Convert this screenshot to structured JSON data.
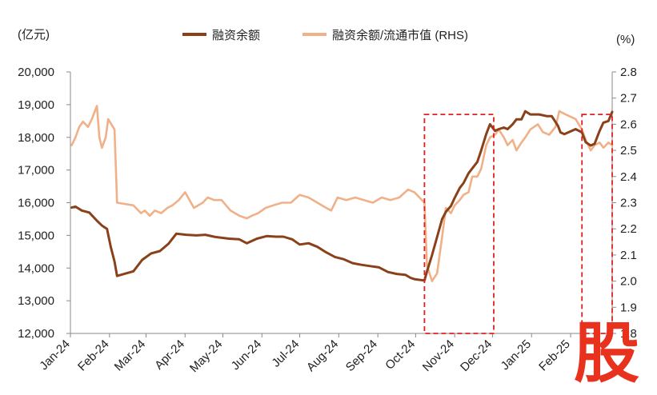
{
  "chart_data": {
    "type": "line",
    "left_unit": "(亿元)",
    "right_unit": "(%)",
    "x_tick_labels": [
      "Jan-24",
      "Feb-24",
      "Mar-24",
      "Apr-24",
      "May-24",
      "Jun-24",
      "Jul-24",
      "Aug-24",
      "Sep-24",
      "Oct-24",
      "Nov-24",
      "Dec-24",
      "Jan-25",
      "Feb-25"
    ],
    "y_left": {
      "min": 12000,
      "max": 20000,
      "ticks": [
        "12,000",
        "13,000",
        "14,000",
        "15,000",
        "16,000",
        "17,000",
        "18,000",
        "19,000",
        "20,000"
      ]
    },
    "y_right": {
      "min": 1.8,
      "max": 2.8,
      "ticks": [
        "1.8",
        "1.9",
        "2.0",
        "2.1",
        "2.2",
        "2.3",
        "2.4",
        "2.5",
        "2.6",
        "2.7",
        "2.8"
      ]
    },
    "series": [
      {
        "name": "融资余额",
        "axis": "left",
        "color": "#8a4119",
        "points": [
          [
            "2024-01-02",
            15850
          ],
          [
            "2024-01-05",
            15880
          ],
          [
            "2024-01-10",
            15760
          ],
          [
            "2024-01-16",
            15700
          ],
          [
            "2024-01-22",
            15450
          ],
          [
            "2024-01-26",
            15300
          ],
          [
            "2024-01-30",
            15200
          ],
          [
            "2024-02-02",
            14650
          ],
          [
            "2024-02-05",
            14200
          ],
          [
            "2024-02-07",
            13760
          ],
          [
            "2024-02-20",
            13900
          ],
          [
            "2024-02-27",
            14250
          ],
          [
            "2024-03-05",
            14450
          ],
          [
            "2024-03-12",
            14520
          ],
          [
            "2024-03-19",
            14750
          ],
          [
            "2024-03-25",
            15050
          ],
          [
            "2024-04-02",
            15020
          ],
          [
            "2024-04-10",
            15000
          ],
          [
            "2024-04-17",
            15020
          ],
          [
            "2024-04-25",
            14950
          ],
          [
            "2024-05-06",
            14900
          ],
          [
            "2024-05-14",
            14880
          ],
          [
            "2024-05-20",
            14760
          ],
          [
            "2024-05-28",
            14900
          ],
          [
            "2024-06-05",
            14980
          ],
          [
            "2024-06-12",
            14960
          ],
          [
            "2024-06-18",
            14960
          ],
          [
            "2024-06-25",
            14880
          ],
          [
            "2024-07-01",
            14720
          ],
          [
            "2024-07-08",
            14760
          ],
          [
            "2024-07-15",
            14650
          ],
          [
            "2024-07-22",
            14480
          ],
          [
            "2024-07-29",
            14340
          ],
          [
            "2024-08-05",
            14270
          ],
          [
            "2024-08-12",
            14150
          ],
          [
            "2024-08-19",
            14100
          ],
          [
            "2024-08-26",
            14060
          ],
          [
            "2024-09-02",
            14020
          ],
          [
            "2024-09-09",
            13880
          ],
          [
            "2024-09-16",
            13820
          ],
          [
            "2024-09-23",
            13790
          ],
          [
            "2024-09-27",
            13700
          ],
          [
            "2024-09-30",
            13660
          ],
          [
            "2024-10-08",
            13620
          ],
          [
            "2024-10-10",
            13900
          ],
          [
            "2024-10-14",
            14400
          ],
          [
            "2024-10-18",
            14950
          ],
          [
            "2024-10-22",
            15500
          ],
          [
            "2024-10-25",
            15720
          ],
          [
            "2024-10-29",
            15900
          ],
          [
            "2024-11-01",
            16150
          ],
          [
            "2024-11-05",
            16450
          ],
          [
            "2024-11-08",
            16600
          ],
          [
            "2024-11-12",
            16900
          ],
          [
            "2024-11-15",
            17050
          ],
          [
            "2024-11-19",
            17250
          ],
          [
            "2024-11-22",
            17600
          ],
          [
            "2024-11-26",
            18100
          ],
          [
            "2024-11-29",
            18400
          ],
          [
            "2024-12-03",
            18200
          ],
          [
            "2024-12-06",
            18250
          ],
          [
            "2024-12-10",
            18300
          ],
          [
            "2024-12-13",
            18250
          ],
          [
            "2024-12-17",
            18400
          ],
          [
            "2024-12-20",
            18550
          ],
          [
            "2024-12-24",
            18550
          ],
          [
            "2024-12-27",
            18800
          ],
          [
            "2024-12-31",
            18700
          ],
          [
            "2025-01-07",
            18700
          ],
          [
            "2025-01-13",
            18650
          ],
          [
            "2025-01-17",
            18650
          ],
          [
            "2025-01-22",
            18350
          ],
          [
            "2025-01-24",
            18150
          ],
          [
            "2025-01-27",
            18100
          ],
          [
            "2025-02-05",
            18250
          ],
          [
            "2025-02-10",
            18150
          ],
          [
            "2025-02-13",
            17850
          ],
          [
            "2025-02-17",
            17750
          ],
          [
            "2025-02-20",
            17800
          ],
          [
            "2025-02-24",
            18200
          ],
          [
            "2025-02-27",
            18450
          ],
          [
            "2025-03-03",
            18500
          ],
          [
            "2025-03-06",
            18780
          ]
        ]
      },
      {
        "name": "融资余额/流通市值 (RHS)",
        "axis": "right",
        "color": "#f0b088",
        "points": [
          [
            "2024-01-02",
            2.52
          ],
          [
            "2024-01-05",
            2.55
          ],
          [
            "2024-01-08",
            2.59
          ],
          [
            "2024-01-11",
            2.61
          ],
          [
            "2024-01-15",
            2.59
          ],
          [
            "2024-01-18",
            2.62
          ],
          [
            "2024-01-22",
            2.67
          ],
          [
            "2024-01-24",
            2.55
          ],
          [
            "2024-01-26",
            2.51
          ],
          [
            "2024-01-29",
            2.55
          ],
          [
            "2024-01-31",
            2.62
          ],
          [
            "2024-02-05",
            2.58
          ],
          [
            "2024-02-07",
            2.3
          ],
          [
            "2024-02-20",
            2.29
          ],
          [
            "2024-02-26",
            2.26
          ],
          [
            "2024-02-29",
            2.27
          ],
          [
            "2024-03-04",
            2.25
          ],
          [
            "2024-03-08",
            2.27
          ],
          [
            "2024-03-13",
            2.26
          ],
          [
            "2024-03-18",
            2.28
          ],
          [
            "2024-03-22",
            2.29
          ],
          [
            "2024-03-27",
            2.31
          ],
          [
            "2024-04-01",
            2.34
          ],
          [
            "2024-04-08",
            2.28
          ],
          [
            "2024-04-15",
            2.3
          ],
          [
            "2024-04-19",
            2.32
          ],
          [
            "2024-04-24",
            2.31
          ],
          [
            "2024-04-30",
            2.31
          ],
          [
            "2024-05-07",
            2.27
          ],
          [
            "2024-05-14",
            2.25
          ],
          [
            "2024-05-20",
            2.24
          ],
          [
            "2024-05-24",
            2.25
          ],
          [
            "2024-05-29",
            2.26
          ],
          [
            "2024-06-04",
            2.28
          ],
          [
            "2024-06-10",
            2.29
          ],
          [
            "2024-06-17",
            2.3
          ],
          [
            "2024-06-24",
            2.3
          ],
          [
            "2024-07-01",
            2.33
          ],
          [
            "2024-07-08",
            2.32
          ],
          [
            "2024-07-15",
            2.3
          ],
          [
            "2024-07-22",
            2.28
          ],
          [
            "2024-07-26",
            2.27
          ],
          [
            "2024-07-31",
            2.32
          ],
          [
            "2024-08-07",
            2.31
          ],
          [
            "2024-08-14",
            2.32
          ],
          [
            "2024-08-21",
            2.31
          ],
          [
            "2024-08-28",
            2.3
          ],
          [
            "2024-09-04",
            2.32
          ],
          [
            "2024-09-11",
            2.31
          ],
          [
            "2024-09-18",
            2.32
          ],
          [
            "2024-09-25",
            2.35
          ],
          [
            "2024-09-30",
            2.34
          ],
          [
            "2024-10-08",
            2.3
          ],
          [
            "2024-10-10",
            2.06
          ],
          [
            "2024-10-14",
            2.0
          ],
          [
            "2024-10-18",
            2.03
          ],
          [
            "2024-10-22",
            2.17
          ],
          [
            "2024-10-25",
            2.28
          ],
          [
            "2024-10-29",
            2.26
          ],
          [
            "2024-11-01",
            2.29
          ],
          [
            "2024-11-05",
            2.31
          ],
          [
            "2024-11-08",
            2.33
          ],
          [
            "2024-11-12",
            2.34
          ],
          [
            "2024-11-15",
            2.4
          ],
          [
            "2024-11-19",
            2.4
          ],
          [
            "2024-11-22",
            2.43
          ],
          [
            "2024-11-26",
            2.52
          ],
          [
            "2024-11-29",
            2.55
          ],
          [
            "2024-12-03",
            2.56
          ],
          [
            "2024-12-06",
            2.58
          ],
          [
            "2024-12-10",
            2.55
          ],
          [
            "2024-12-13",
            2.52
          ],
          [
            "2024-12-17",
            2.54
          ],
          [
            "2024-12-20",
            2.5
          ],
          [
            "2024-12-24",
            2.53
          ],
          [
            "2024-12-27",
            2.55
          ],
          [
            "2024-12-31",
            2.58
          ],
          [
            "2025-01-06",
            2.6
          ],
          [
            "2025-01-10",
            2.57
          ],
          [
            "2025-01-15",
            2.56
          ],
          [
            "2025-01-20",
            2.59
          ],
          [
            "2025-01-23",
            2.65
          ],
          [
            "2025-01-27",
            2.64
          ],
          [
            "2025-02-05",
            2.62
          ],
          [
            "2025-02-10",
            2.58
          ],
          [
            "2025-02-13",
            2.54
          ],
          [
            "2025-02-17",
            2.5
          ],
          [
            "2025-02-20",
            2.52
          ],
          [
            "2025-02-24",
            2.53
          ],
          [
            "2025-02-27",
            2.51
          ],
          [
            "2025-03-03",
            2.53
          ],
          [
            "2025-03-06",
            2.52
          ]
        ]
      }
    ],
    "annotations": [
      {
        "type": "dashed-box",
        "color": "#e02020",
        "x_range": [
          "2024-10-08",
          "2024-12-02"
        ],
        "y_range": [
          12000,
          18700
        ]
      },
      {
        "type": "dashed-box",
        "color": "#e02020",
        "x_range": [
          "2025-02-10",
          "2025-03-06"
        ],
        "y_range": [
          12000,
          18700
        ]
      }
    ]
  },
  "watermark": {
    "text": "股",
    "color": "#e8321e"
  }
}
